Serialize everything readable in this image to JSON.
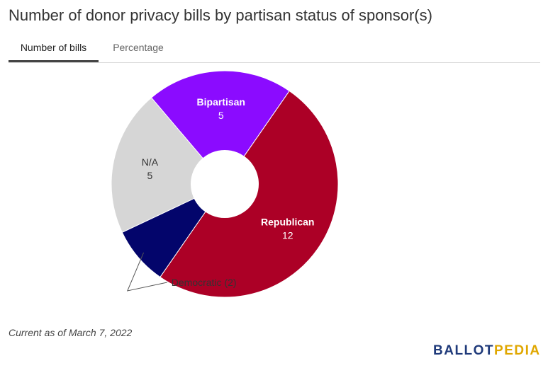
{
  "title": "Number of donor privacy bills by partisan status of sponsor(s)",
  "tabs": [
    {
      "label": "Number of bills",
      "active": true
    },
    {
      "label": "Percentage",
      "active": false
    }
  ],
  "chart_data": {
    "type": "pie",
    "variant": "donut",
    "slices": [
      {
        "label": "Republican",
        "value": 12,
        "color": "#ac0026",
        "label_color": "#ffffff"
      },
      {
        "label": "Democratic",
        "value": 2,
        "color": "#03056b",
        "label_color": "#333333",
        "callout": "Democratic (2)"
      },
      {
        "label": "N/A",
        "value": 5,
        "color": "#d6d6d6",
        "label_color": "#333333"
      },
      {
        "label": "Bipartisan",
        "value": 5,
        "color": "#8b0bff",
        "label_color": "#ffffff"
      }
    ]
  },
  "footnote": "Current as of March 7, 2022",
  "logo": {
    "part1": "BALLOT",
    "part2": "PEDIA",
    "color1": "#1f3a7a",
    "color2": "#e0a700"
  }
}
